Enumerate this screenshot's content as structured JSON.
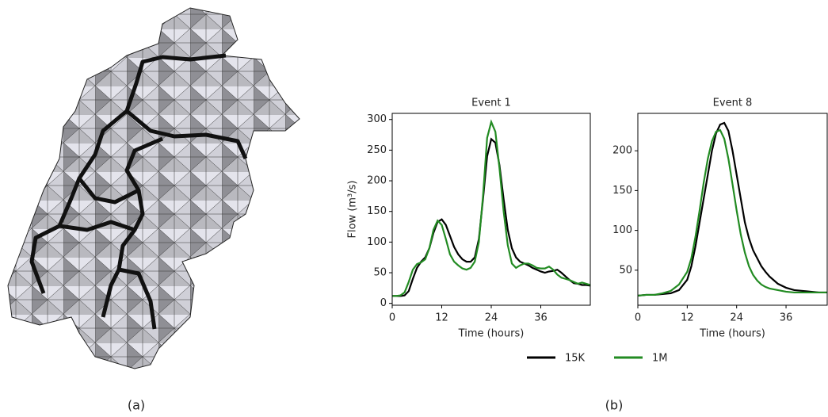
{
  "panel_labels": [
    "(a)",
    "(b)"
  ],
  "chart_data": [
    {
      "type": "line",
      "title": "Event 1",
      "xlabel": "Time (hours)",
      "ylabel": "Flow (m³/s)",
      "x": [
        0,
        1,
        2,
        3,
        4,
        5,
        6,
        7,
        8,
        9,
        10,
        11,
        12,
        13,
        14,
        15,
        16,
        17,
        18,
        19,
        20,
        21,
        22,
        23,
        24,
        25,
        26,
        27,
        28,
        29,
        30,
        31,
        32,
        33,
        34,
        35,
        36,
        37,
        38,
        39,
        40,
        41,
        42,
        43,
        44,
        45,
        46,
        47,
        48
      ],
      "series": [
        {
          "name": "15K",
          "color": "#000000",
          "values": [
            12,
            12,
            12,
            13,
            20,
            40,
            58,
            68,
            75,
            90,
            115,
            133,
            137,
            128,
            110,
            92,
            80,
            72,
            68,
            68,
            75,
            105,
            170,
            240,
            268,
            262,
            225,
            170,
            120,
            90,
            75,
            68,
            65,
            62,
            58,
            55,
            52,
            50,
            52,
            53,
            55,
            50,
            44,
            38,
            33,
            32,
            30,
            30,
            29
          ]
        },
        {
          "name": "1M",
          "color": "#228b22",
          "values": [
            12,
            12,
            13,
            18,
            35,
            55,
            64,
            67,
            72,
            90,
            120,
            135,
            128,
            105,
            80,
            68,
            62,
            57,
            55,
            58,
            68,
            100,
            175,
            270,
            296,
            280,
            220,
            150,
            95,
            65,
            58,
            62,
            65,
            65,
            62,
            58,
            57,
            57,
            60,
            55,
            47,
            42,
            40,
            38,
            35,
            32,
            34,
            32,
            30
          ]
        }
      ],
      "xlim": [
        0,
        48
      ],
      "xticks": [
        0,
        12,
        24,
        36
      ],
      "ylim": [
        -3,
        310
      ],
      "yticks": [
        0,
        50,
        100,
        150,
        200,
        250,
        300
      ]
    },
    {
      "type": "line",
      "title": "Event 8",
      "xlabel": "Time (hours)",
      "x": [
        0,
        2,
        4,
        6,
        8,
        10,
        12,
        13,
        14,
        15,
        16,
        17,
        18,
        19,
        20,
        21,
        22,
        23,
        24,
        25,
        26,
        27,
        28,
        29,
        30,
        31,
        32,
        34,
        36,
        38,
        40,
        42,
        44,
        46
      ],
      "series": [
        {
          "color": "#000000",
          "values": [
            18,
            19,
            19,
            20,
            21,
            25,
            38,
            55,
            80,
            110,
            140,
            170,
            200,
            222,
            233,
            235,
            225,
            200,
            170,
            140,
            110,
            90,
            75,
            65,
            55,
            48,
            42,
            33,
            28,
            25,
            24,
            23,
            22,
            22
          ]
        },
        {
          "color": "#228b22",
          "values": [
            18,
            19,
            19,
            21,
            24,
            32,
            48,
            65,
            92,
            125,
            160,
            190,
            212,
            224,
            226,
            215,
            190,
            158,
            125,
            95,
            72,
            55,
            44,
            37,
            32,
            29,
            27,
            25,
            23,
            22,
            22,
            22,
            22,
            22
          ]
        }
      ],
      "xlim": [
        0,
        46
      ],
      "xticks": [
        0,
        12,
        24,
        36
      ],
      "ylim": [
        6,
        247
      ],
      "yticks": [
        50,
        100,
        150,
        200
      ]
    }
  ]
}
